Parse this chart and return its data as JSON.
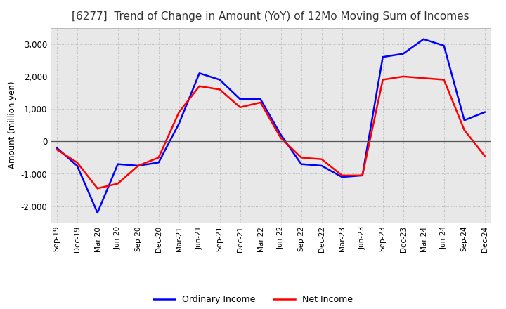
{
  "title": "[6277]  Trend of Change in Amount (YoY) of 12Mo Moving Sum of Incomes",
  "ylabel": "Amount (million yen)",
  "x_labels": [
    "Sep-19",
    "Dec-19",
    "Mar-20",
    "Jun-20",
    "Sep-20",
    "Dec-20",
    "Mar-21",
    "Jun-21",
    "Sep-21",
    "Dec-21",
    "Mar-22",
    "Jun-22",
    "Sep-22",
    "Dec-22",
    "Mar-23",
    "Jun-23",
    "Sep-23",
    "Dec-23",
    "Mar-24",
    "Jun-24",
    "Sep-24",
    "Dec-24"
  ],
  "ordinary_income": [
    -200,
    -750,
    -2200,
    -700,
    -750,
    -650,
    550,
    2100,
    1900,
    1300,
    1300,
    200,
    -700,
    -750,
    -1100,
    -1050,
    2600,
    2700,
    3150,
    2950,
    650,
    900
  ],
  "net_income": [
    -250,
    -650,
    -1450,
    -1300,
    -750,
    -500,
    900,
    1700,
    1600,
    1050,
    1200,
    100,
    -500,
    -550,
    -1050,
    -1050,
    1900,
    2000,
    1950,
    1900,
    350,
    -450
  ],
  "ordinary_color": "#0000ff",
  "net_color": "#ff0000",
  "ylim": [
    -2500,
    3500
  ],
  "yticks": [
    -2000,
    -1000,
    0,
    1000,
    2000,
    3000
  ],
  "grid_color": "#aaaaaa",
  "plot_bg_color": "#e8e8e8",
  "background_color": "#ffffff",
  "title_fontsize": 11,
  "legend_labels": [
    "Ordinary Income",
    "Net Income"
  ]
}
